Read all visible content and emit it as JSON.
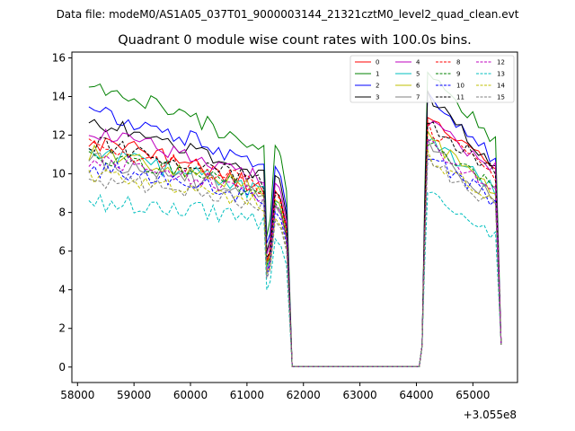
{
  "suptitle": "Data file: modeM0/AS1A05_037T01_9000003144_21321cztM0_level2_quad_clean.evt",
  "chart_data": {
    "type": "line",
    "title": "Quadrant 0 module wise count rates with 100.0s bins.",
    "xlabel": "",
    "ylabel": "",
    "offset_label": "+3.055e8",
    "xlim": [
      57900,
      65790
    ],
    "ylim": [
      -0.8,
      16.3
    ],
    "xticks": [
      58000,
      59000,
      60000,
      61000,
      62000,
      63000,
      64000,
      65000
    ],
    "xtick_labels": [
      "58000",
      "59000",
      "60000",
      "61000",
      "62000",
      "63000",
      "64000",
      "65000"
    ],
    "yticks": [
      0,
      2,
      4,
      6,
      8,
      10,
      12,
      14,
      16
    ],
    "ytick_labels": [
      "0",
      "2",
      "4",
      "6",
      "8",
      "10",
      "12",
      "14",
      "16"
    ],
    "legend_position": "top-right",
    "series": [
      {
        "name": "0",
        "color": "#ff0000",
        "dash": "solid",
        "base": 11.7,
        "end": 10.5,
        "second": 13.0
      },
      {
        "name": "1",
        "color": "#008000",
        "dash": "solid",
        "base": 14.7,
        "end": 11.4,
        "second": 15.5
      },
      {
        "name": "2",
        "color": "#0000ff",
        "dash": "solid",
        "base": 13.3,
        "end": 10.5,
        "second": 14.2
      },
      {
        "name": "3",
        "color": "#000000",
        "dash": "solid",
        "base": 12.7,
        "end": 10.3,
        "second": 14.0
      },
      {
        "name": "4",
        "color": "#bf00bf",
        "dash": "solid",
        "base": 12.2,
        "end": 10.2,
        "second": 12.6
      },
      {
        "name": "5",
        "color": "#00bfbf",
        "dash": "solid",
        "base": 11.0,
        "end": 9.0,
        "second": 11.8
      },
      {
        "name": "6",
        "color": "#bfbf00",
        "dash": "solid",
        "base": 11.1,
        "end": 8.9,
        "second": 11.9
      },
      {
        "name": "7",
        "color": "#808080",
        "dash": "solid",
        "base": 10.7,
        "end": 8.5,
        "second": 11.4
      },
      {
        "name": "8",
        "color": "#ff0000",
        "dash": "dashed",
        "base": 11.4,
        "end": 9.8,
        "second": 12.4
      },
      {
        "name": "9",
        "color": "#008000",
        "dash": "dashed",
        "base": 10.9,
        "end": 9.1,
        "second": 11.6
      },
      {
        "name": "10",
        "color": "#0000ff",
        "dash": "dashed",
        "base": 10.3,
        "end": 8.4,
        "second": 11.0
      },
      {
        "name": "11",
        "color": "#000000",
        "dash": "dashed",
        "base": 11.6,
        "end": 10.0,
        "second": 12.6
      },
      {
        "name": "12",
        "color": "#bf00bf",
        "dash": "dashed",
        "base": 10.7,
        "end": 9.0,
        "second": 11.6
      },
      {
        "name": "13",
        "color": "#00bfbf",
        "dash": "dashed",
        "base": 8.5,
        "end": 6.6,
        "second": 9.3
      },
      {
        "name": "14",
        "color": "#bfbf00",
        "dash": "dashed",
        "base": 9.9,
        "end": 8.3,
        "second": 10.9
      },
      {
        "name": "15",
        "color": "#808080",
        "dash": "dashed",
        "base": 9.7,
        "end": 8.2,
        "second": 10.7
      }
    ],
    "segments": {
      "first_start": 58200,
      "first_end": 61300,
      "dip_x": 61350,
      "bump_x": 61600,
      "drop_x": 61800,
      "zero_end": 64050,
      "second_start": 64200,
      "second_end": 65450,
      "last_x": 65500
    }
  }
}
